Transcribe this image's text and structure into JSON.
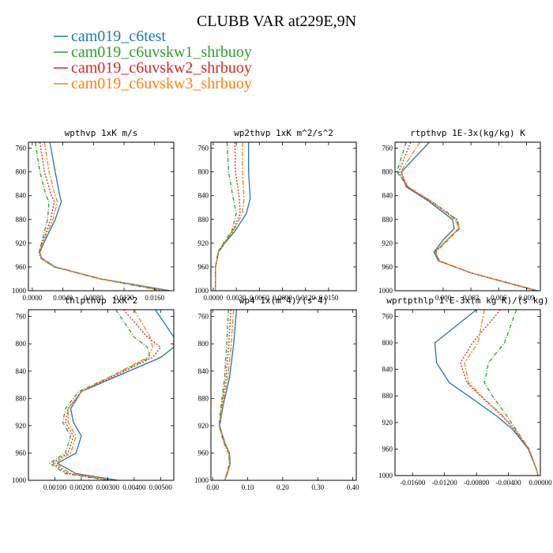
{
  "figure": {
    "title": "CLUBB VAR at229E,9N",
    "legend": [
      {
        "name": "cam019_c6test",
        "color": "#1f77b4"
      },
      {
        "name": "cam019_c6uvskw1_shrbuoy",
        "color": "#2ca02c"
      },
      {
        "name": "cam019_c6uvskw2_shrbuoy",
        "color": "#d62728"
      },
      {
        "name": "cam019_c6uvskw3_shrbuoy",
        "color": "#ff7f0e"
      }
    ]
  },
  "chart_data": [
    {
      "type": "line",
      "title": "wpthvp  1xK m/s",
      "xlim": [
        -0.0005,
        0.0185
      ],
      "ylim": [
        1000,
        750
      ],
      "xticks": [
        0.0,
        0.004,
        0.008,
        0.012,
        0.016
      ],
      "xtick_labels": [
        "0.0000",
        "0.0040",
        "0.0080",
        "0.0120",
        "0.0160"
      ],
      "yticks": [
        760,
        800,
        840,
        880,
        920,
        960,
        1000
      ],
      "y": [
        750,
        800,
        840,
        850,
        880,
        920,
        935,
        945,
        960,
        980,
        1000
      ],
      "series": [
        {
          "name": "cam019_c6test",
          "values": [
            0.0023,
            0.003,
            0.0036,
            0.0038,
            0.003,
            0.0015,
            0.001,
            0.0012,
            0.003,
            0.009,
            0.018
          ]
        },
        {
          "name": "cam019_c6uvskw1_shrbuoy",
          "values": [
            0.0004,
            0.001,
            0.0018,
            0.0022,
            0.002,
            0.0012,
            0.0009,
            0.0011,
            0.0028,
            0.0088,
            0.017
          ]
        },
        {
          "name": "cam019_c6uvskw2_shrbuoy",
          "values": [
            0.001,
            0.0016,
            0.0025,
            0.0029,
            0.0024,
            0.0013,
            0.0009,
            0.0011,
            0.0029,
            0.0089,
            0.0172
          ]
        },
        {
          "name": "cam019_c6uvskw3_shrbuoy",
          "values": [
            0.0016,
            0.0022,
            0.003,
            0.0033,
            0.0027,
            0.0014,
            0.001,
            0.0012,
            0.0029,
            0.0089,
            0.0175
          ]
        }
      ]
    },
    {
      "type": "line",
      "title": "wp2thvp  1xK m^2/s^2",
      "xlim": [
        -0.0003,
        0.0186
      ],
      "ylim": [
        1000,
        750
      ],
      "xticks": [
        0.0,
        0.003,
        0.006,
        0.009,
        0.012,
        0.015
      ],
      "xtick_labels": [
        "0.0000",
        "0.0030",
        "0.0060",
        "0.0090",
        "0.0120",
        "0.0150"
      ],
      "yticks": [
        760,
        800,
        840,
        880,
        920,
        960,
        1000
      ],
      "y": [
        750,
        800,
        845,
        870,
        900,
        920,
        935,
        960,
        1000
      ],
      "series": [
        {
          "name": "cam019_c6test",
          "values": [
            0.0046,
            0.0046,
            0.0048,
            0.0043,
            0.0028,
            0.0015,
            0.0007,
            0.0003,
            0.0003
          ]
        },
        {
          "name": "cam019_c6uvskw1_shrbuoy",
          "values": [
            0.0018,
            0.002,
            0.0026,
            0.003,
            0.0024,
            0.0013,
            0.0006,
            0.0003,
            0.0003
          ]
        },
        {
          "name": "cam019_c6uvskw2_shrbuoy",
          "values": [
            0.0028,
            0.0029,
            0.0034,
            0.0035,
            0.0025,
            0.0014,
            0.0007,
            0.0003,
            0.0003
          ]
        },
        {
          "name": "cam019_c6uvskw3_shrbuoy",
          "values": [
            0.0038,
            0.0038,
            0.004,
            0.0038,
            0.0026,
            0.0014,
            0.0007,
            0.0003,
            0.0003
          ]
        }
      ]
    },
    {
      "type": "line",
      "title": "rtpthvp  1E-3x(kg/kg) K",
      "xlim": [
        -0.0052,
        0.0105
      ],
      "ylim": [
        1000,
        750
      ],
      "xticks": [
        0.0,
        0.003,
        0.006,
        0.009
      ],
      "xtick_labels": [
        "0.000",
        "0.003",
        "0.006",
        "0.009"
      ],
      "yticks": [
        760,
        800,
        840,
        880,
        920,
        960,
        1000
      ],
      "y": [
        750,
        800,
        825,
        850,
        880,
        895,
        915,
        935,
        950,
        970,
        1000
      ],
      "series": [
        {
          "name": "cam019_c6test",
          "values": [
            -0.0015,
            -0.0045,
            -0.004,
            -0.0015,
            0.001,
            0.0012,
            0.0,
            -0.001,
            -0.0005,
            0.003,
            0.0102
          ]
        },
        {
          "name": "cam019_c6uvskw1_shrbuoy",
          "values": [
            -0.004,
            -0.005,
            -0.0038,
            -0.0012,
            0.0015,
            0.0018,
            0.0005,
            -0.0008,
            -0.0004,
            0.003,
            0.01
          ]
        },
        {
          "name": "cam019_c6uvskw2_shrbuoy",
          "values": [
            -0.0035,
            -0.0048,
            -0.0039,
            -0.0013,
            0.0014,
            0.0017,
            0.0004,
            -0.0009,
            -0.0004,
            0.003,
            0.0101
          ]
        },
        {
          "name": "cam019_c6uvskw3_shrbuoy",
          "values": [
            -0.0025,
            -0.0046,
            -0.0038,
            -0.0012,
            0.0013,
            0.0017,
            0.0004,
            -0.0009,
            -0.0004,
            0.003,
            0.0101
          ]
        }
      ]
    },
    {
      "type": "line",
      "title": "thlpthvp  1xK^2",
      "xlim": [
        0.0,
        0.0055
      ],
      "ylim": [
        1000,
        750
      ],
      "xticks": [
        0.001,
        0.002,
        0.003,
        0.004,
        0.005
      ],
      "xtick_labels": [
        "0.00100",
        "0.00200",
        "0.00300",
        "0.00400",
        "0.00500"
      ],
      "yticks": [
        760,
        800,
        840,
        880,
        920,
        960,
        1000
      ],
      "y": [
        750,
        790,
        805,
        820,
        850,
        870,
        895,
        915,
        935,
        960,
        975,
        990,
        1000
      ],
      "series": [
        {
          "name": "cam019_c6test",
          "values": [
            0.0048,
            0.0055,
            0.0055,
            0.005,
            0.0032,
            0.002,
            0.0016,
            0.0017,
            0.002,
            0.0018,
            0.0011,
            0.0018,
            0.0034
          ]
        },
        {
          "name": "cam019_c6uvskw1_shrbuoy",
          "values": [
            0.0033,
            0.004,
            0.0045,
            0.0046,
            0.003,
            0.0019,
            0.0014,
            0.0013,
            0.0016,
            0.0014,
            0.0008,
            0.0014,
            0.003
          ]
        },
        {
          "name": "cam019_c6uvskw2_shrbuoy",
          "values": [
            0.0036,
            0.0045,
            0.005,
            0.0047,
            0.0031,
            0.002,
            0.0015,
            0.0014,
            0.0017,
            0.0015,
            0.0009,
            0.0015,
            0.0031
          ]
        },
        {
          "name": "cam019_c6uvskw3_shrbuoy",
          "values": [
            0.004,
            0.0046,
            0.0047,
            0.0045,
            0.003,
            0.002,
            0.0015,
            0.0015,
            0.0018,
            0.0016,
            0.001,
            0.0016,
            0.0032
          ]
        }
      ]
    },
    {
      "type": "line",
      "title": "wp4  1x(m^4)/(s^4)",
      "xlim": [
        -0.005,
        0.41
      ],
      "ylim": [
        1000,
        750
      ],
      "xticks": [
        0.0,
        0.1,
        0.2,
        0.3,
        0.4
      ],
      "xtick_labels": [
        "0.00",
        "0.10",
        "0.20",
        "0.30",
        "0.40"
      ],
      "yticks": [
        760,
        800,
        840,
        880,
        920,
        960,
        1000
      ],
      "y": [
        750,
        800,
        850,
        890,
        920,
        945,
        960,
        975,
        990,
        1000
      ],
      "series": [
        {
          "name": "cam019_c6test",
          "values": [
            0.068,
            0.06,
            0.048,
            0.03,
            0.02,
            0.035,
            0.048,
            0.05,
            0.042,
            0.035
          ]
        },
        {
          "name": "cam019_c6uvskw1_shrbuoy",
          "values": [
            0.045,
            0.04,
            0.034,
            0.024,
            0.018,
            0.032,
            0.045,
            0.048,
            0.04,
            0.034
          ]
        },
        {
          "name": "cam019_c6uvskw2_shrbuoy",
          "values": [
            0.052,
            0.046,
            0.038,
            0.026,
            0.019,
            0.033,
            0.046,
            0.049,
            0.041,
            0.034
          ]
        },
        {
          "name": "cam019_c6uvskw3_shrbuoy",
          "values": [
            0.06,
            0.053,
            0.043,
            0.028,
            0.019,
            0.034,
            0.047,
            0.049,
            0.041,
            0.035
          ]
        }
      ]
    },
    {
      "type": "line",
      "title": "wprtpthlp  1-E-3x(m kg K)/(s kg)",
      "xlim": [
        -0.0182,
        0.0
      ],
      "ylim": [
        1000,
        750
      ],
      "xticks": [
        -0.016,
        -0.012,
        -0.008,
        -0.004,
        0.0
      ],
      "xtick_labels": [
        "-0.01600",
        "-0.01200",
        "-0.00800",
        "-0.00400",
        "0.00000"
      ],
      "yticks": [
        760,
        800,
        840,
        880,
        920,
        960,
        1000
      ],
      "y": [
        750,
        800,
        830,
        860,
        880,
        910,
        930,
        960,
        990,
        1000
      ],
      "series": [
        {
          "name": "cam019_c6test",
          "values": [
            -0.008,
            -0.0132,
            -0.013,
            -0.0114,
            -0.009,
            -0.0055,
            -0.0035,
            -0.0015,
            -0.0005,
            -0.0003
          ]
        },
        {
          "name": "cam019_c6uvskw1_shrbuoy",
          "values": [
            -0.003,
            -0.0045,
            -0.0065,
            -0.007,
            -0.006,
            -0.0042,
            -0.0031,
            -0.0014,
            -0.0005,
            -0.0003
          ]
        },
        {
          "name": "cam019_c6uvskw2_shrbuoy",
          "values": [
            -0.005,
            -0.0085,
            -0.01,
            -0.0092,
            -0.0075,
            -0.0048,
            -0.0033,
            -0.0015,
            -0.0005,
            -0.0003
          ]
        },
        {
          "name": "cam019_c6uvskw3_shrbuoy",
          "values": [
            -0.007,
            -0.0078,
            -0.0095,
            -0.009,
            -0.0074,
            -0.0047,
            -0.0032,
            -0.0014,
            -0.0005,
            -0.0003
          ]
        }
      ]
    }
  ]
}
